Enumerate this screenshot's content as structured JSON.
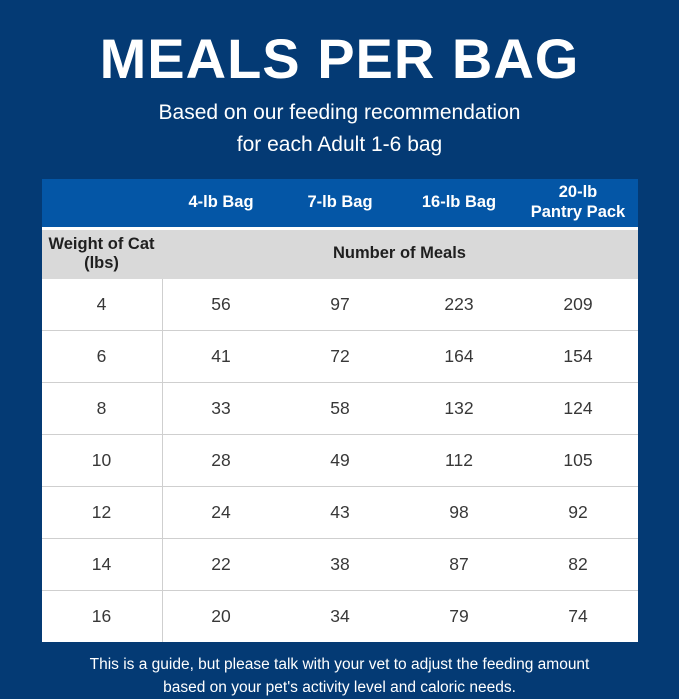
{
  "colors": {
    "background_navy": "#043a74",
    "header_blue": "#0456a6",
    "subheader_gray": "#d9d9d9",
    "row_divider_gray": "#cfcfcf",
    "body_text_dark": "#383838",
    "text_white": "#ffffff"
  },
  "header": {
    "title": "MEALS PER BAG",
    "subtitle_line1": "Based on our feeding recommendation",
    "subtitle_line2": "for each Adult 1-6 bag"
  },
  "table": {
    "columns": [
      "4-lb Bag",
      "7-lb Bag",
      "16-lb Bag",
      "20-lb\nPantry Pack"
    ],
    "row_header_label": "Weight of Cat\n(lbs)",
    "group_header_label": "Number of Meals",
    "rows": [
      {
        "weight": "4",
        "values": [
          "56",
          "97",
          "223",
          "209"
        ]
      },
      {
        "weight": "6",
        "values": [
          "41",
          "72",
          "164",
          "154"
        ]
      },
      {
        "weight": "8",
        "values": [
          "33",
          "58",
          "132",
          "124"
        ]
      },
      {
        "weight": "10",
        "values": [
          "28",
          "49",
          "112",
          "105"
        ]
      },
      {
        "weight": "12",
        "values": [
          "24",
          "43",
          "98",
          "92"
        ]
      },
      {
        "weight": "14",
        "values": [
          "22",
          "38",
          "87",
          "82"
        ]
      },
      {
        "weight": "16",
        "values": [
          "20",
          "34",
          "79",
          "74"
        ]
      }
    ]
  },
  "footer": {
    "line1": "This is a guide, but please talk with your vet to adjust the feeding amount",
    "line2": "based on your pet's activity level and caloric needs."
  },
  "chart_data": {
    "type": "table",
    "title": "MEALS PER BAG",
    "subtitle": "Based on our feeding recommendation for each Adult 1-6 bag",
    "row_axis_label": "Weight of Cat (lbs)",
    "value_label": "Number of Meals",
    "columns": [
      "Weight of Cat (lbs)",
      "4-lb Bag",
      "7-lb Bag",
      "16-lb Bag",
      "20-lb Pantry Pack"
    ],
    "rows": [
      [
        4,
        56,
        97,
        223,
        209
      ],
      [
        6,
        41,
        72,
        164,
        154
      ],
      [
        8,
        33,
        58,
        132,
        124
      ],
      [
        10,
        28,
        49,
        112,
        105
      ],
      [
        12,
        24,
        43,
        98,
        92
      ],
      [
        14,
        22,
        38,
        87,
        82
      ],
      [
        16,
        20,
        34,
        79,
        74
      ]
    ],
    "note": "This is a guide, but please talk with your vet to adjust the feeding amount based on your pet's activity level and caloric needs."
  }
}
